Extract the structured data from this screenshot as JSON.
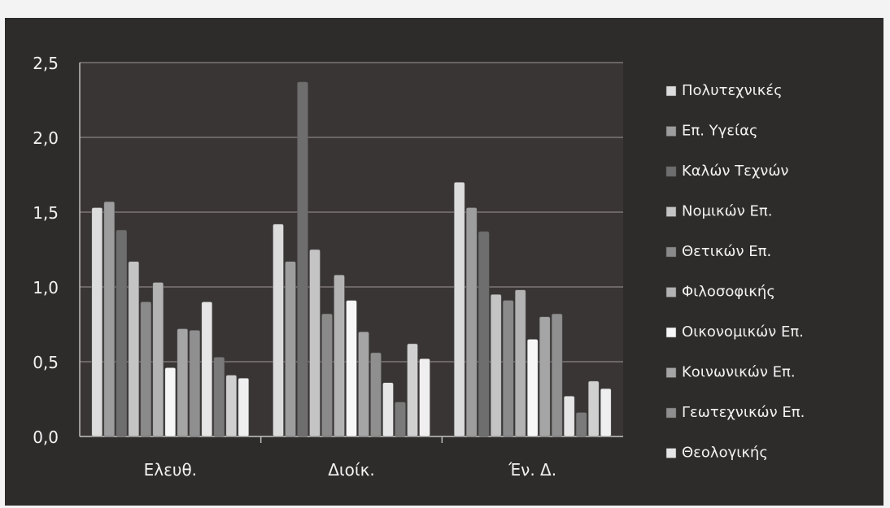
{
  "chart_data": {
    "type": "bar",
    "categories": [
      "Ελευθ.",
      "Διοίκ.",
      "Έν. Δ."
    ],
    "ylim": [
      0,
      2.5
    ],
    "yticks": [
      "0,0",
      "0,5",
      "1,0",
      "1,5",
      "2,0",
      "2,5"
    ],
    "grid": true,
    "legend_position": "right",
    "series": [
      {
        "name": "Πολυτεχνικές",
        "color": "#dcdcdc",
        "values": [
          1.53,
          1.42,
          1.7
        ]
      },
      {
        "name": "Επ. Υγείας",
        "color": "#9d9d9d",
        "values": [
          1.57,
          1.17,
          1.53
        ]
      },
      {
        "name": "Καλών Τεχνών",
        "color": "#6e6e6e",
        "values": [
          1.38,
          2.37,
          1.37
        ]
      },
      {
        "name": "Νομικών Επ.",
        "color": "#c4c4c4",
        "values": [
          1.17,
          1.25,
          0.95
        ]
      },
      {
        "name": "Θετικών Επ.",
        "color": "#8a8a8a",
        "values": [
          0.9,
          0.82,
          0.91
        ]
      },
      {
        "name": "Φιλοσοφικής",
        "color": "#b3b3b3",
        "values": [
          1.03,
          1.08,
          0.98
        ]
      },
      {
        "name": "Οικονομικών Επ.",
        "color": "#f7f7f7",
        "values": [
          0.46,
          0.91,
          0.65
        ]
      },
      {
        "name": "Κοινωνικών Επ.",
        "color": "#a5a5a5",
        "values": [
          0.72,
          0.7,
          0.8
        ]
      },
      {
        "name": "Γεωτεχνικών Επ.",
        "color": "#8f8f8f",
        "values": [
          0.71,
          0.56,
          0.82
        ]
      },
      {
        "name": "Θεολογικής",
        "color": "#e6e6e6",
        "values": [
          0.9,
          0.36,
          0.27
        ]
      },
      {
        "name": "",
        "color": "#7a7a7a",
        "values": [
          0.53,
          0.23,
          0.16
        ]
      },
      {
        "name": "",
        "color": "#d0d0d0",
        "values": [
          0.41,
          0.62,
          0.37
        ]
      },
      {
        "name": "",
        "color": "#efefef",
        "values": [
          0.39,
          0.52,
          0.32
        ]
      }
    ]
  }
}
